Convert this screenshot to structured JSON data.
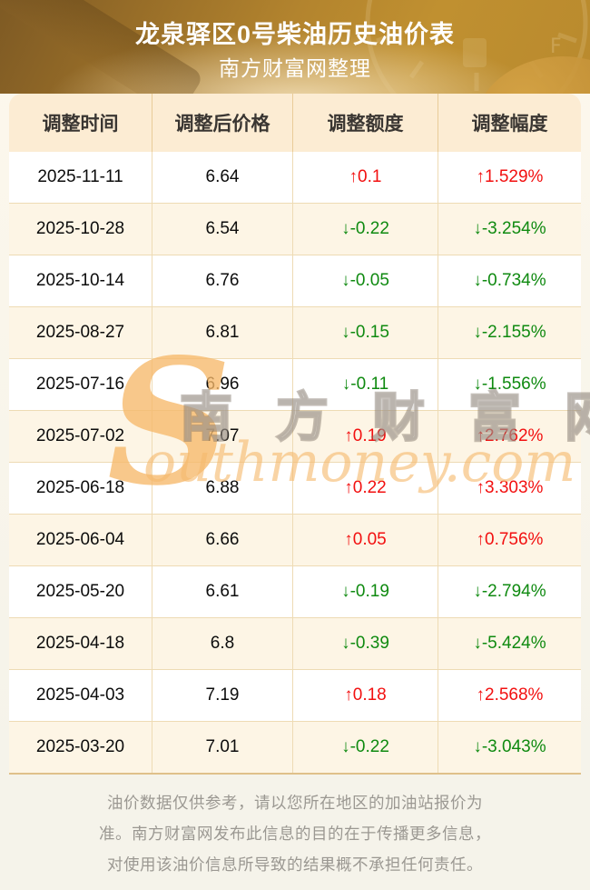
{
  "header": {
    "title": "龙泉驿区0号柴油历史油价表",
    "subtitle": "南方财富网整理"
  },
  "table": {
    "columns": [
      "调整时间",
      "调整后价格",
      "调整额度",
      "调整幅度"
    ],
    "rows": [
      {
        "date": "2025-11-11",
        "price": "6.64",
        "change": "↑0.1",
        "percent": "↑1.529%",
        "direction": "up"
      },
      {
        "date": "2025-10-28",
        "price": "6.54",
        "change": "↓-0.22",
        "percent": "↓-3.254%",
        "direction": "down"
      },
      {
        "date": "2025-10-14",
        "price": "6.76",
        "change": "↓-0.05",
        "percent": "↓-0.734%",
        "direction": "down"
      },
      {
        "date": "2025-08-27",
        "price": "6.81",
        "change": "↓-0.15",
        "percent": "↓-2.155%",
        "direction": "down"
      },
      {
        "date": "2025-07-16",
        "price": "6.96",
        "change": "↓-0.11",
        "percent": "↓-1.556%",
        "direction": "down"
      },
      {
        "date": "2025-07-02",
        "price": "7.07",
        "change": "↑0.19",
        "percent": "↑2.762%",
        "direction": "up"
      },
      {
        "date": "2025-06-18",
        "price": "6.88",
        "change": "↑0.22",
        "percent": "↑3.303%",
        "direction": "up"
      },
      {
        "date": "2025-06-04",
        "price": "6.66",
        "change": "↑0.05",
        "percent": "↑0.756%",
        "direction": "up"
      },
      {
        "date": "2025-05-20",
        "price": "6.61",
        "change": "↓-0.19",
        "percent": "↓-2.794%",
        "direction": "down"
      },
      {
        "date": "2025-04-18",
        "price": "6.8",
        "change": "↓-0.39",
        "percent": "↓-5.424%",
        "direction": "down"
      },
      {
        "date": "2025-04-03",
        "price": "7.19",
        "change": "↑0.18",
        "percent": "↑2.568%",
        "direction": "up"
      },
      {
        "date": "2025-03-20",
        "price": "7.01",
        "change": "↓-0.22",
        "percent": "↓-3.043%",
        "direction": "down"
      }
    ]
  },
  "watermark": {
    "initial": "S",
    "cn": "南方财富网",
    "en": "outhmoney.com"
  },
  "footer": {
    "lines": [
      "油价数据仅供参考，请以您所在地区的加油站报价为",
      "准。南方财富网发布此信息的目的在于传播更多信息，",
      "对使用该油价信息所导致的结果概不承担任何责任。"
    ]
  },
  "colors": {
    "up": "#f21010",
    "down": "#0f8a10",
    "banner_gold": "#b3842e",
    "table_header_bg": "#fcecd3",
    "row_alt_bg": "#fdf5e5"
  }
}
